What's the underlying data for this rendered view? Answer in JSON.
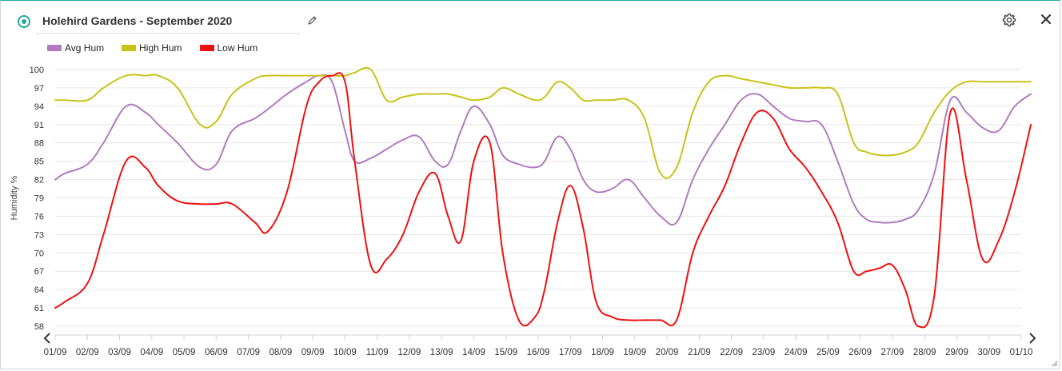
{
  "header": {
    "title": "Holehird Gardens - September 2020"
  },
  "colors": {
    "accent": "#2aa89a",
    "avg": "#b07cc0",
    "high": "#c8c31a",
    "low": "#ee1111",
    "grid": "#e6e6e6"
  },
  "icons": {
    "status": "radio-dot-icon",
    "edit": "pencil-icon",
    "settings": "gear-icon",
    "close": "close-icon",
    "prev": "chevron-left-icon",
    "next": "chevron-right-icon"
  },
  "chart_data": {
    "type": "line",
    "title": "Holehird Gardens - September 2020",
    "xlabel": "",
    "ylabel": "Humidity %",
    "ylim": [
      58,
      100
    ],
    "yticks": [
      "100",
      "97",
      "94",
      "91",
      "88",
      "85",
      "82",
      "79",
      "76",
      "73",
      "70",
      "67",
      "64",
      "61",
      "58"
    ],
    "xticks": [
      "01/09",
      "02/09",
      "03/09",
      "04/09",
      "05/09",
      "06/09",
      "07/09",
      "08/09",
      "09/09",
      "10/09",
      "11/09",
      "12/09",
      "13/09",
      "14/09",
      "15/09",
      "16/09",
      "17/09",
      "18/09",
      "19/09",
      "20/09",
      "21/09",
      "22/09",
      "23/09",
      "24/09",
      "25/09",
      "26/09",
      "27/09",
      "28/09",
      "29/09",
      "30/09",
      "01/10"
    ],
    "x_range": [
      "01/09",
      "01/10"
    ],
    "legend_position": "top-left",
    "grid": true,
    "series": [
      {
        "name": "Avg Hum",
        "color": "#b07cc0",
        "x": [
          0.0,
          0.3,
          1.0,
          1.5,
          2.2,
          2.8,
          3.2,
          3.8,
          4.5,
          5.0,
          5.5,
          6.2,
          6.6,
          7.2,
          7.8,
          8.2,
          8.6,
          9.0,
          9.3,
          9.8,
          10.3,
          10.8,
          11.3,
          11.8,
          12.2,
          12.6,
          13.0,
          13.5,
          13.9,
          14.4,
          14.9,
          15.2,
          15.6,
          16.0,
          16.4,
          16.8,
          17.3,
          17.8,
          18.3,
          18.8,
          19.3,
          19.8,
          20.3,
          20.8,
          21.3,
          21.8,
          22.3,
          22.8,
          23.3,
          23.8,
          24.3,
          24.8,
          25.2,
          25.6,
          26.0,
          26.4,
          26.8,
          27.3,
          27.8,
          28.3,
          28.8,
          29.3,
          29.8,
          30.3
        ],
        "values": [
          82,
          83,
          84.5,
          88,
          94,
          93,
          91,
          88,
          84,
          84.5,
          90,
          92,
          93.5,
          96,
          98,
          99,
          98,
          90,
          85,
          85.5,
          87,
          88.5,
          89,
          85,
          84.5,
          90,
          94,
          91,
          86,
          84.5,
          84,
          85,
          89,
          87,
          82,
          80,
          80.5,
          82,
          79,
          76,
          75,
          82,
          87,
          91,
          95,
          96,
          94,
          92,
          91.5,
          91,
          85,
          78,
          75.5,
          75,
          75,
          75.5,
          77,
          83,
          95,
          93,
          90.5,
          90,
          94,
          96
        ]
      },
      {
        "name": "High Hum",
        "color": "#c8c31a",
        "x": [
          0.0,
          0.3,
          1.0,
          1.5,
          2.2,
          2.8,
          3.2,
          3.8,
          4.5,
          5.0,
          5.5,
          6.2,
          6.6,
          7.2,
          7.8,
          8.2,
          8.6,
          9.0,
          9.3,
          9.8,
          10.3,
          10.8,
          11.3,
          11.8,
          12.2,
          12.6,
          13.0,
          13.5,
          13.9,
          14.4,
          14.9,
          15.2,
          15.6,
          16.0,
          16.4,
          16.8,
          17.3,
          17.8,
          18.3,
          18.8,
          19.3,
          19.8,
          20.3,
          20.8,
          21.3,
          21.8,
          22.3,
          22.8,
          23.3,
          23.8,
          24.3,
          24.8,
          25.2,
          25.6,
          26.0,
          26.4,
          26.8,
          27.3,
          27.8,
          28.3,
          28.8,
          29.3,
          29.8,
          30.3
        ],
        "values": [
          95,
          95,
          95,
          97,
          99,
          99,
          99,
          97,
          91,
          91.5,
          96,
          98.5,
          99,
          99,
          99,
          99,
          99,
          99,
          99.5,
          100,
          95,
          95.5,
          96,
          96,
          96,
          95.5,
          95,
          95.5,
          97,
          96,
          95,
          95.5,
          98,
          97,
          95,
          95,
          95,
          95,
          92,
          83,
          84,
          93,
          98,
          99,
          98.5,
          98,
          97.5,
          97,
          97,
          97,
          96,
          88,
          86.5,
          86,
          86,
          86.5,
          88,
          93,
          96.5,
          98,
          98,
          98,
          98,
          98
        ]
      },
      {
        "name": "Low Hum",
        "color": "#ee1111",
        "x": [
          0.0,
          0.3,
          1.0,
          1.5,
          2.2,
          2.8,
          3.2,
          3.8,
          4.5,
          5.0,
          5.5,
          6.2,
          6.6,
          7.2,
          7.8,
          8.2,
          8.6,
          9.0,
          9.3,
          9.8,
          10.3,
          10.8,
          11.3,
          11.8,
          12.2,
          12.6,
          13.0,
          13.5,
          13.9,
          14.4,
          14.9,
          15.2,
          15.6,
          16.0,
          16.4,
          16.8,
          17.3,
          17.8,
          18.3,
          18.8,
          19.3,
          19.8,
          20.3,
          20.8,
          21.3,
          21.8,
          22.3,
          22.8,
          23.3,
          23.8,
          24.3,
          24.8,
          25.2,
          25.6,
          26.0,
          26.4,
          26.8,
          27.3,
          27.8,
          28.3,
          28.8,
          29.3,
          29.8,
          30.3
        ],
        "values": [
          61,
          62,
          65,
          73,
          85,
          84,
          81,
          78.5,
          78,
          78,
          78,
          75,
          73.5,
          80,
          94,
          98,
          99,
          98,
          85,
          68,
          69,
          73,
          80,
          83,
          76,
          72,
          85,
          88,
          70,
          59,
          59.5,
          64,
          75,
          81,
          74,
          62,
          59.5,
          59,
          59,
          59,
          59,
          70,
          76,
          81,
          88,
          93,
          92,
          87,
          84,
          80,
          75,
          67,
          67,
          67.5,
          68,
          64,
          58,
          63,
          93,
          82,
          69,
          72,
          80,
          91
        ]
      }
    ]
  }
}
